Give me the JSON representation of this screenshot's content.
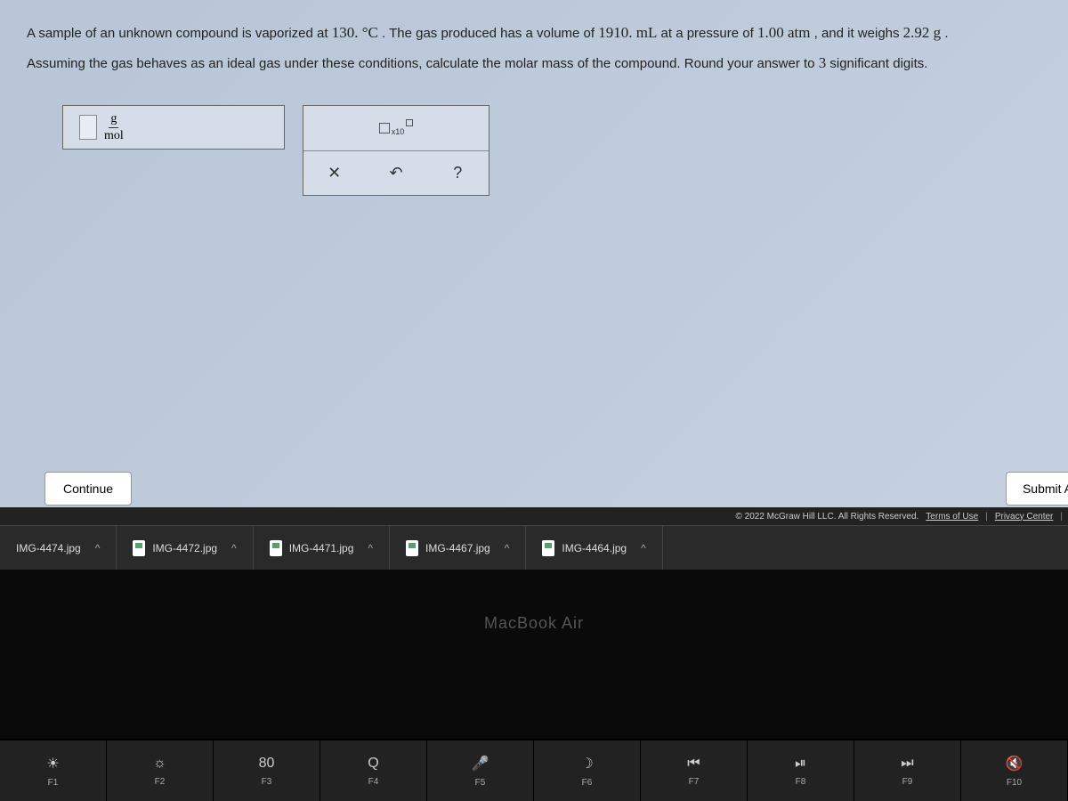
{
  "question": {
    "line1_prefix": "A sample of an unknown compound is vaporized at ",
    "temp": "130. °C",
    "line1_mid": ". The gas produced has a volume of ",
    "volume": "1910. mL",
    "line1_mid2": " at a pressure of ",
    "pressure": "1.00 atm",
    "line1_mid3": ", and it weighs ",
    "mass": "2.92 g",
    "line1_end": ".",
    "line2_prefix": "Assuming the gas behaves as an ideal gas under these conditions, calculate the molar mass of the compound. Round your answer to ",
    "sigfigs": "3",
    "line2_end": " significant digits."
  },
  "answer": {
    "unit_num": "g",
    "unit_den": "mol"
  },
  "tools": {
    "sci_label": "x10",
    "clear": "✕",
    "reset": "↶",
    "help": "?"
  },
  "buttons": {
    "continue": "Continue",
    "submit": "Submit A"
  },
  "footer": {
    "copyright": "© 2022 McGraw Hill LLC. All Rights Reserved.",
    "terms": "Terms of Use",
    "privacy": "Privacy Center",
    "sep": "|"
  },
  "downloads": [
    {
      "name": "IMG-4474.jpg"
    },
    {
      "name": "IMG-4472.jpg"
    },
    {
      "name": "IMG-4471.jpg"
    },
    {
      "name": "IMG-4467.jpg"
    },
    {
      "name": "IMG-4464.jpg"
    }
  ],
  "laptop": "MacBook Air",
  "fnkeys": [
    {
      "sym": "☀",
      "lbl": "F1"
    },
    {
      "sym": "☼",
      "lbl": "F2"
    },
    {
      "sym": "⌧",
      "lbl": "F3",
      "alt": "80"
    },
    {
      "sym": "🔍",
      "lbl": "F4",
      "alt": "Q"
    },
    {
      "sym": "🎤",
      "lbl": "F5"
    },
    {
      "sym": "☽",
      "lbl": "F6"
    },
    {
      "sym": "⏮",
      "lbl": "F7"
    },
    {
      "sym": "⏯",
      "lbl": "F8"
    },
    {
      "sym": "⏭",
      "lbl": "F9"
    },
    {
      "sym": "🔇",
      "lbl": "F10"
    }
  ]
}
